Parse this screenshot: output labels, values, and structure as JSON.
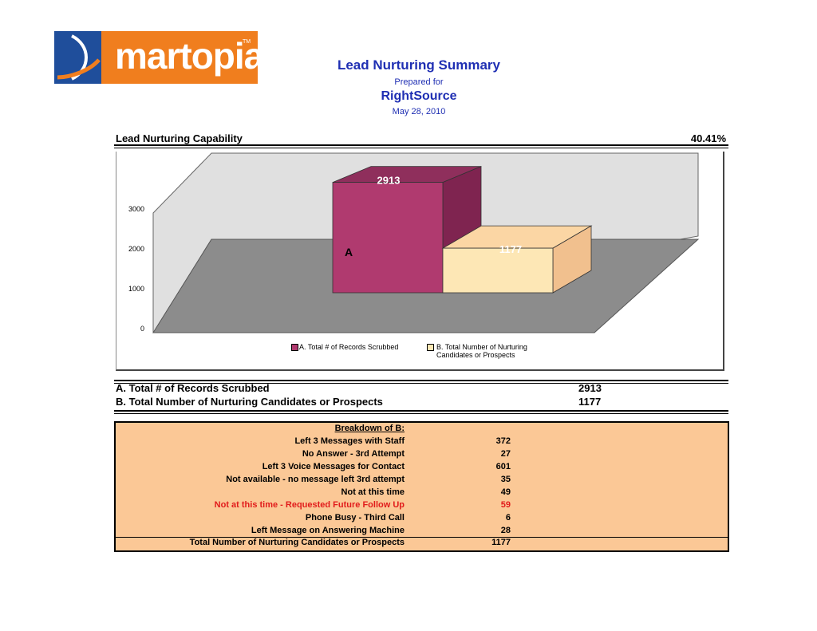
{
  "logo": {
    "text": "martopia",
    "tm": "TM"
  },
  "header": {
    "title": "Lead Nurturing Summary",
    "prepared_for": "Prepared for",
    "client": "RightSource",
    "date": "May 28, 2010"
  },
  "capability": {
    "label": "Lead Nurturing Capability",
    "value": "40.41%"
  },
  "chart_data": {
    "type": "bar",
    "categories": [
      "A",
      "B"
    ],
    "values": [
      2913,
      1177
    ],
    "data_labels": [
      "2913",
      "1177"
    ],
    "category_markers": [
      "A",
      ""
    ],
    "ylim": [
      0,
      3000
    ],
    "yticks": [
      "3000",
      "2000",
      "1000",
      "0"
    ],
    "legend": [
      {
        "label": "A.  Total # of Records Scrubbed",
        "color": "#b03a6f"
      },
      {
        "label": "B.  Total Number of Nurturing",
        "label2": "Candidates or Prospects",
        "color": "#fde7b5"
      }
    ],
    "legend_position": "bottom",
    "grid": false,
    "colors": {
      "wall": "#e0e0e0",
      "floor": "#8c8c8c",
      "bar_a": "#b03a6f",
      "bar_b": "#fde7b5"
    }
  },
  "totals": [
    {
      "label": "A.  Total # of Records Scrubbed",
      "value": "2913"
    },
    {
      "label": "B.  Total Number of Nurturing Candidates or Prospects",
      "value": "1177"
    }
  ],
  "breakdown": {
    "heading": "Breakdown of B:",
    "rows": [
      {
        "label": "Left 3 Messages with Staff",
        "value": "372"
      },
      {
        "label": "No Answer - 3rd Attempt",
        "value": "27"
      },
      {
        "label": "Left 3 Voice Messages for Contact",
        "value": "601"
      },
      {
        "label": "Not available - no message left 3rd attempt",
        "value": "35"
      },
      {
        "label": "Not at this time",
        "value": "49"
      },
      {
        "label": "Not at this time - Requested Future Follow Up",
        "value": "59",
        "highlight": true
      },
      {
        "label": "Phone Busy - Third Call",
        "value": "6"
      },
      {
        "label": "Left Message on Answering Machine",
        "value": "28"
      }
    ],
    "total_label": "Total Number of Nurturing Candidates or Prospects",
    "total_value": "1177"
  }
}
